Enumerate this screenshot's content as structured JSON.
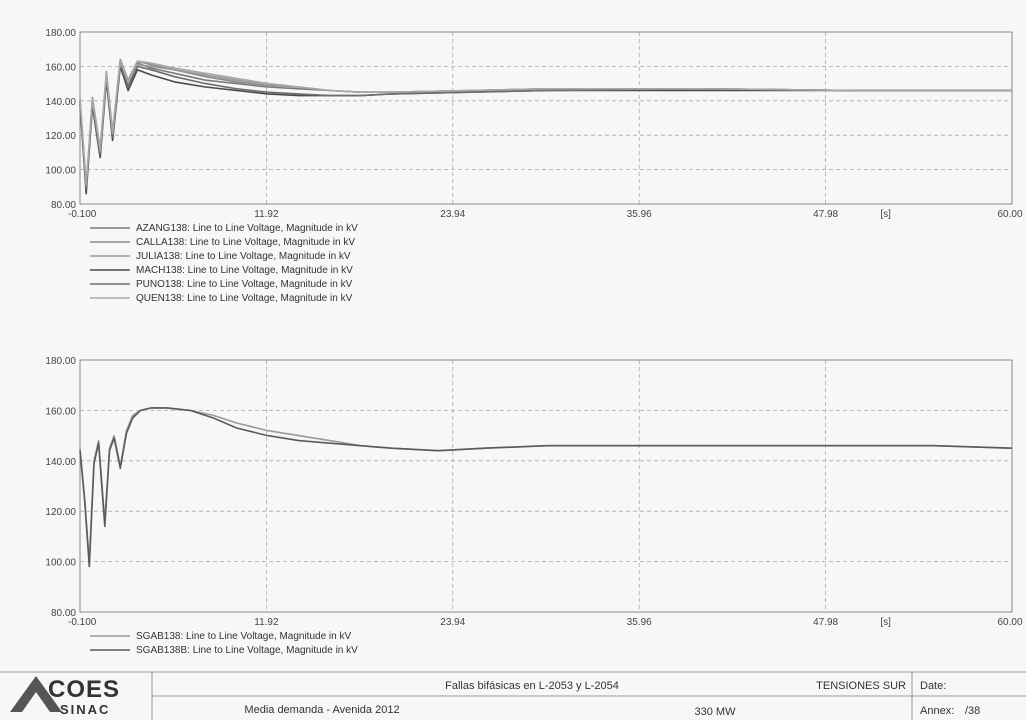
{
  "chart_data": [
    {
      "type": "line",
      "title": "",
      "xlabel": "",
      "ylabel": "",
      "x_unit": "[s]",
      "xlim": [
        -0.1,
        60.0
      ],
      "ylim": [
        80.0,
        180.0
      ],
      "x_ticks": [
        "-0.100",
        "11.92",
        "23.94",
        "35.96",
        "47.98",
        "60.00"
      ],
      "x_tick_values": [
        -0.1,
        11.92,
        23.94,
        35.96,
        47.98,
        60.0
      ],
      "y_ticks": [
        "80.00",
        "100.00",
        "120.00",
        "140.00",
        "160.00",
        "180.00"
      ],
      "y_tick_values": [
        80,
        100,
        120,
        140,
        160,
        180
      ],
      "grid": true,
      "legend_position": "bottom-left",
      "series": [
        {
          "name": "AZANG138: Line to Line Voltage, Magnitude in kV",
          "color": "#7a7a7a",
          "x": [
            -0.1,
            0.3,
            0.7,
            1.2,
            1.6,
            2.0,
            2.5,
            3.0,
            3.6,
            4.5,
            6.0,
            8.0,
            10.0,
            12.0,
            14.0,
            16.0,
            18.0,
            20.0,
            25.0,
            30.0,
            40.0,
            50.0,
            60.0
          ],
          "y": [
            140,
            90,
            140,
            110,
            155,
            120,
            163,
            150,
            162,
            159,
            156,
            152,
            150,
            148,
            147,
            146,
            145,
            145,
            146,
            147,
            147,
            146,
            146
          ]
        },
        {
          "name": "CALLA138: Line to Line Voltage, Magnitude in kV",
          "color": "#8c8c8c",
          "x": [
            -0.1,
            0.3,
            0.7,
            1.2,
            1.6,
            2.0,
            2.5,
            3.0,
            3.6,
            4.5,
            6.0,
            8.0,
            10.0,
            12.0,
            14.0,
            16.0,
            18.0,
            20.0,
            25.0,
            30.0,
            40.0,
            50.0,
            60.0
          ],
          "y": [
            141,
            88,
            142,
            112,
            157,
            122,
            164,
            152,
            163,
            161,
            158,
            154,
            151,
            149,
            148,
            146,
            145,
            145,
            146,
            147,
            147,
            146,
            146
          ]
        },
        {
          "name": "JULIA138: Line to Line Voltage, Magnitude in kV",
          "color": "#999999",
          "x": [
            -0.1,
            0.3,
            0.7,
            1.2,
            1.6,
            2.0,
            2.5,
            3.0,
            3.6,
            4.5,
            6.0,
            8.0,
            10.0,
            12.0,
            14.0,
            16.0,
            18.0,
            20.0,
            25.0,
            30.0,
            40.0,
            50.0,
            60.0
          ],
          "y": [
            139,
            92,
            138,
            108,
            153,
            118,
            161,
            149,
            161,
            160,
            158,
            155,
            152,
            150,
            148,
            146,
            145,
            145,
            146,
            147,
            147,
            146,
            146
          ]
        },
        {
          "name": "MACH138: Line to Line Voltage, Magnitude in kV",
          "color": "#4a4a4a",
          "x": [
            -0.1,
            0.3,
            0.7,
            1.2,
            1.6,
            2.0,
            2.5,
            3.0,
            3.6,
            4.5,
            6.0,
            8.0,
            10.0,
            12.0,
            14.0,
            16.0,
            18.0,
            20.0,
            25.0,
            30.0,
            40.0,
            50.0,
            60.0
          ],
          "y": [
            138,
            86,
            137,
            107,
            152,
            117,
            160,
            146,
            158,
            155,
            151,
            148,
            146,
            144,
            143,
            143,
            143,
            144,
            145,
            146,
            146,
            146,
            146
          ]
        },
        {
          "name": "PUNO138: Line to Line Voltage, Magnitude in kV",
          "color": "#6e6e6e",
          "x": [
            -0.1,
            0.3,
            0.7,
            1.2,
            1.6,
            2.0,
            2.5,
            3.0,
            3.6,
            4.5,
            6.0,
            8.0,
            10.0,
            12.0,
            14.0,
            16.0,
            18.0,
            20.0,
            25.0,
            30.0,
            40.0,
            50.0,
            60.0
          ],
          "y": [
            140,
            89,
            139,
            109,
            154,
            119,
            162,
            148,
            160,
            158,
            154,
            150,
            147,
            145,
            144,
            143,
            143,
            144,
            145,
            146,
            147,
            146,
            146
          ]
        },
        {
          "name": "QUEN138: Line to Line Voltage, Magnitude in kV",
          "color": "#a8a8a8",
          "x": [
            -0.1,
            0.3,
            0.7,
            1.2,
            1.6,
            2.0,
            2.5,
            3.0,
            3.6,
            4.5,
            6.0,
            8.0,
            10.0,
            12.0,
            14.0,
            16.0,
            18.0,
            20.0,
            25.0,
            30.0,
            40.0,
            50.0,
            60.0
          ],
          "y": [
            142,
            91,
            141,
            111,
            156,
            121,
            163,
            151,
            163,
            162,
            159,
            156,
            153,
            150,
            148,
            146,
            145,
            145,
            146,
            147,
            147,
            146,
            146
          ]
        }
      ]
    },
    {
      "type": "line",
      "title": "",
      "xlabel": "",
      "ylabel": "",
      "x_unit": "[s]",
      "xlim": [
        -0.1,
        60.0
      ],
      "ylim": [
        80.0,
        180.0
      ],
      "x_ticks": [
        "-0.100",
        "11.92",
        "23.94",
        "35.96",
        "47.98",
        "60.00"
      ],
      "x_tick_values": [
        -0.1,
        11.92,
        23.94,
        35.96,
        47.98,
        60.0
      ],
      "y_ticks": [
        "80.00",
        "100.00",
        "120.00",
        "140.00",
        "160.00",
        "180.00"
      ],
      "y_tick_values": [
        80,
        100,
        120,
        140,
        160,
        180
      ],
      "grid": true,
      "legend_position": "bottom-left",
      "series": [
        {
          "name": "SGAB138: Line to Line Voltage, Magnitude in kV",
          "color": "#9a9a9a",
          "x": [
            -0.1,
            0.2,
            0.5,
            0.8,
            1.1,
            1.5,
            1.8,
            2.1,
            2.5,
            2.9,
            3.3,
            3.8,
            4.5,
            5.5,
            7.0,
            8.5,
            10.0,
            12.0,
            14.0,
            16.0,
            18.0,
            20.0,
            23.0,
            26.0,
            30.0,
            35.0,
            40.0,
            45.0,
            50.0,
            55.0,
            60.0
          ],
          "y": [
            145,
            125,
            100,
            140,
            148,
            116,
            145,
            150,
            138,
            152,
            158,
            160,
            161,
            161,
            160,
            158,
            155,
            152,
            150,
            148,
            146,
            145,
            144,
            145,
            146,
            146,
            146,
            146,
            146,
            146,
            145
          ]
        },
        {
          "name": "SGAB138B: Line to Line Voltage, Magnitude in kV",
          "color": "#5a5a5a",
          "x": [
            -0.1,
            0.2,
            0.5,
            0.8,
            1.1,
            1.5,
            1.8,
            2.1,
            2.5,
            2.9,
            3.3,
            3.8,
            4.5,
            5.5,
            7.0,
            8.5,
            10.0,
            12.0,
            14.0,
            16.0,
            18.0,
            20.0,
            23.0,
            26.0,
            30.0,
            35.0,
            40.0,
            45.0,
            50.0,
            55.0,
            60.0
          ],
          "y": [
            144,
            124,
            98,
            139,
            147,
            114,
            144,
            149,
            137,
            151,
            157,
            160,
            161,
            161,
            160,
            157,
            153,
            150,
            148,
            147,
            146,
            145,
            144,
            145,
            146,
            146,
            146,
            146,
            146,
            146,
            145
          ]
        }
      ]
    }
  ],
  "footer": {
    "logo_top": "COES",
    "logo_bottom": "SINAC",
    "line1": "Fallas bifásicas en L-2053 y L-2054",
    "line2": "Media demanda - Avenida 2012",
    "mw": "330 MW",
    "region": "TENSIONES SUR",
    "date_label": "Date:",
    "annex_label": "Annex:",
    "annex_value": "/38"
  }
}
